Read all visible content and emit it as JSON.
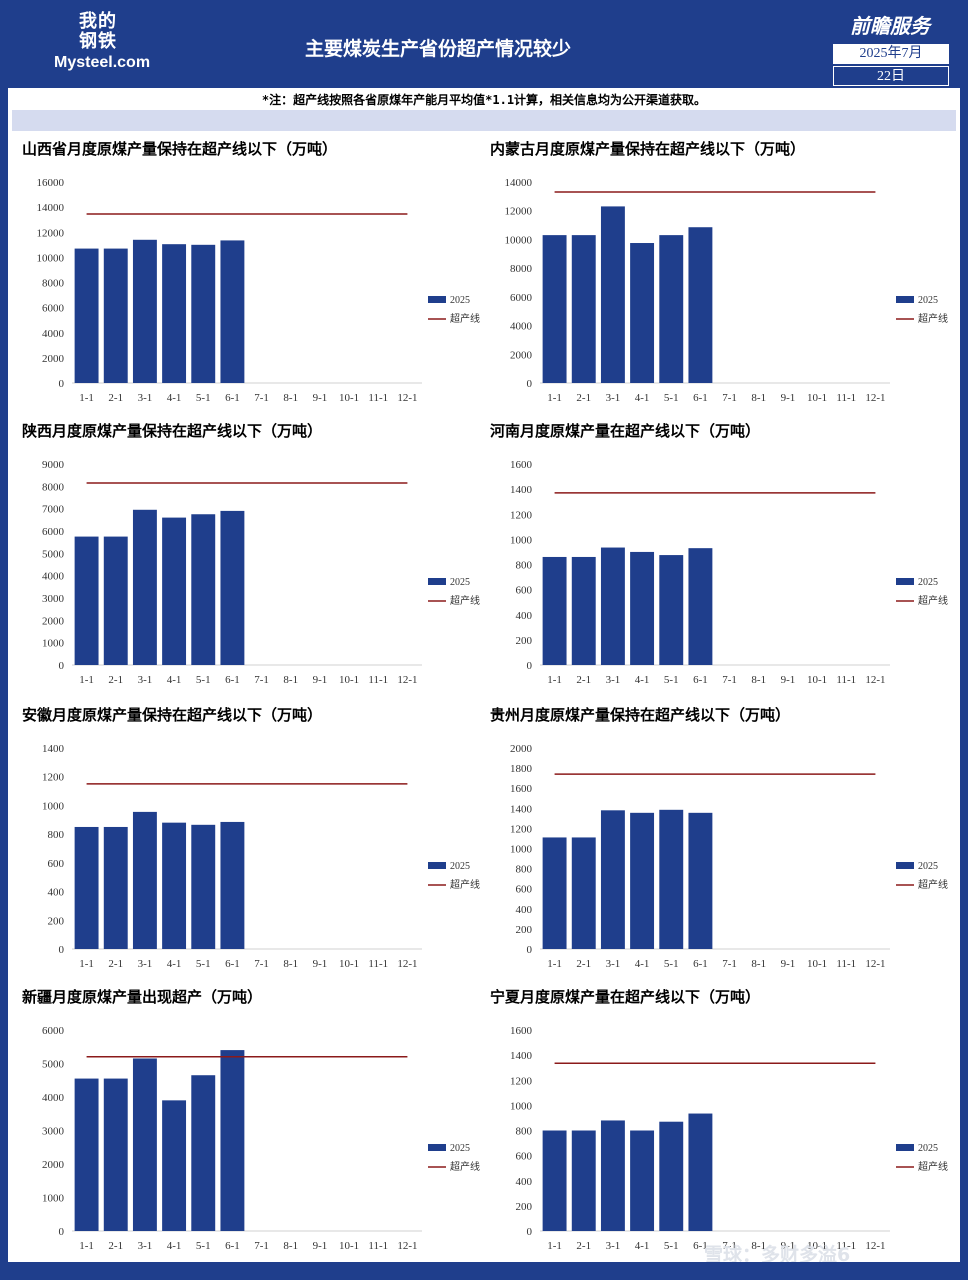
{
  "header": {
    "logo_cn": "我的钢铁",
    "logo_en": "Mysteel.com",
    "title": "主要煤炭生产省份超产情况较少",
    "brand": "前瞻服务",
    "date": "2025年7月",
    "day": "22日"
  },
  "note": "*注：超产线按照各省原煤年产能月平均值*1.1计算，相关信息均为公开渠道获取。",
  "watermark": "雪球：多财多溢6",
  "colors": {
    "bar": "#1f3e8c",
    "line": "#8b1a1a",
    "frame": "#1f3e8c"
  },
  "chart_data": [
    {
      "type": "bar",
      "title": "山西省月度原煤产量保持在超产线以下（万吨）",
      "categories": [
        "1-1",
        "2-1",
        "3-1",
        "4-1",
        "5-1",
        "6-1",
        "7-1",
        "8-1",
        "9-1",
        "10-1",
        "11-1",
        "12-1"
      ],
      "series": [
        {
          "name": "2025",
          "type": "bar",
          "values": [
            10700,
            10700,
            11400,
            11050,
            11000,
            11350,
            null,
            null,
            null,
            null,
            null,
            null
          ]
        },
        {
          "name": "超产线",
          "type": "line",
          "values": [
            13450,
            13450,
            13450,
            13450,
            13450,
            13450,
            13450,
            13450,
            13450,
            13450,
            13450,
            13450
          ]
        }
      ],
      "yticks": [
        0,
        2000,
        4000,
        6000,
        8000,
        10000,
        12000,
        14000,
        16000
      ],
      "ylim": [
        0,
        16000
      ],
      "legend": "right"
    },
    {
      "type": "bar",
      "title": "内蒙古月度原煤产量保持在超产线以下（万吨）",
      "categories": [
        "1-1",
        "2-1",
        "3-1",
        "4-1",
        "5-1",
        "6-1",
        "7-1",
        "8-1",
        "9-1",
        "10-1",
        "11-1",
        "12-1"
      ],
      "series": [
        {
          "name": "2025",
          "type": "bar",
          "values": [
            10300,
            10300,
            12300,
            9750,
            10300,
            10850,
            null,
            null,
            null,
            null,
            null,
            null
          ]
        },
        {
          "name": "超产线",
          "type": "line",
          "values": [
            13300,
            13300,
            13300,
            13300,
            13300,
            13300,
            13300,
            13300,
            13300,
            13300,
            13300,
            13300
          ]
        }
      ],
      "yticks": [
        0,
        2000,
        4000,
        6000,
        8000,
        10000,
        12000,
        14000
      ],
      "ylim": [
        0,
        14000
      ],
      "legend": "right"
    },
    {
      "type": "bar",
      "title": "陕西月度原煤产量保持在超产线以下（万吨）",
      "categories": [
        "1-1",
        "2-1",
        "3-1",
        "4-1",
        "5-1",
        "6-1",
        "7-1",
        "8-1",
        "9-1",
        "10-1",
        "11-1",
        "12-1"
      ],
      "series": [
        {
          "name": "2025",
          "type": "bar",
          "values": [
            5750,
            5750,
            6950,
            6600,
            6750,
            6900,
            null,
            null,
            null,
            null,
            null,
            null
          ]
        },
        {
          "name": "超产线",
          "type": "line",
          "values": [
            8150,
            8150,
            8150,
            8150,
            8150,
            8150,
            8150,
            8150,
            8150,
            8150,
            8150,
            8150
          ]
        }
      ],
      "yticks": [
        0,
        1000,
        2000,
        3000,
        4000,
        5000,
        6000,
        7000,
        8000,
        9000
      ],
      "ylim": [
        0,
        9000
      ],
      "legend": "right"
    },
    {
      "type": "bar",
      "title": "河南月度原煤产量在超产线以下（万吨）",
      "categories": [
        "1-1",
        "2-1",
        "3-1",
        "4-1",
        "5-1",
        "6-1",
        "7-1",
        "8-1",
        "9-1",
        "10-1",
        "11-1",
        "12-1"
      ],
      "series": [
        {
          "name": "2025",
          "type": "bar",
          "values": [
            860,
            860,
            935,
            900,
            875,
            930,
            null,
            null,
            null,
            null,
            null,
            null
          ]
        },
        {
          "name": "超产线",
          "type": "line",
          "values": [
            1370,
            1370,
            1370,
            1370,
            1370,
            1370,
            1370,
            1370,
            1370,
            1370,
            1370,
            1370
          ]
        }
      ],
      "yticks": [
        0,
        200,
        400,
        600,
        800,
        1000,
        1200,
        1400,
        1600
      ],
      "ylim": [
        0,
        1600
      ],
      "legend": "right"
    },
    {
      "type": "bar",
      "title": "安徽月度原煤产量保持在超产线以下（万吨）",
      "categories": [
        "1-1",
        "2-1",
        "3-1",
        "4-1",
        "5-1",
        "6-1",
        "7-1",
        "8-1",
        "9-1",
        "10-1",
        "11-1",
        "12-1"
      ],
      "series": [
        {
          "name": "2025",
          "type": "bar",
          "values": [
            850,
            850,
            955,
            880,
            865,
            885,
            null,
            null,
            null,
            null,
            null,
            null
          ]
        },
        {
          "name": "超产线",
          "type": "line",
          "values": [
            1150,
            1150,
            1150,
            1150,
            1150,
            1150,
            1150,
            1150,
            1150,
            1150,
            1150,
            1150
          ]
        }
      ],
      "yticks": [
        0,
        200,
        400,
        600,
        800,
        1000,
        1200,
        1400
      ],
      "ylim": [
        0,
        1400
      ],
      "legend": "right"
    },
    {
      "type": "bar",
      "title": "贵州月度原煤产量保持在超产线以下（万吨）",
      "categories": [
        "1-1",
        "2-1",
        "3-1",
        "4-1",
        "5-1",
        "6-1",
        "7-1",
        "8-1",
        "9-1",
        "10-1",
        "11-1",
        "12-1"
      ],
      "series": [
        {
          "name": "2025",
          "type": "bar",
          "values": [
            1110,
            1110,
            1380,
            1355,
            1385,
            1355,
            null,
            null,
            null,
            null,
            null,
            null
          ]
        },
        {
          "name": "超产线",
          "type": "line",
          "values": [
            1740,
            1740,
            1740,
            1740,
            1740,
            1740,
            1740,
            1740,
            1740,
            1740,
            1740,
            1740
          ]
        }
      ],
      "yticks": [
        0,
        200,
        400,
        600,
        800,
        1000,
        1200,
        1400,
        1600,
        1800,
        2000
      ],
      "ylim": [
        0,
        2000
      ],
      "legend": "right"
    },
    {
      "type": "bar",
      "title": "新疆月度原煤产量出现超产（万吨）",
      "categories": [
        "1-1",
        "2-1",
        "3-1",
        "4-1",
        "5-1",
        "6-1",
        "7-1",
        "8-1",
        "9-1",
        "10-1",
        "11-1",
        "12-1"
      ],
      "series": [
        {
          "name": "2025",
          "type": "bar",
          "values": [
            4550,
            4550,
            5150,
            3900,
            4650,
            5400,
            null,
            null,
            null,
            null,
            null,
            null
          ]
        },
        {
          "name": "超产线",
          "type": "line",
          "values": [
            5200,
            5200,
            5200,
            5200,
            5200,
            5200,
            5200,
            5200,
            5200,
            5200,
            5200,
            5200
          ]
        }
      ],
      "yticks": [
        0,
        1000,
        2000,
        3000,
        4000,
        5000,
        6000
      ],
      "ylim": [
        0,
        6000
      ],
      "legend": "right"
    },
    {
      "type": "bar",
      "title": "宁夏月度原煤产量在超产线以下（万吨）",
      "categories": [
        "1-1",
        "2-1",
        "3-1",
        "4-1",
        "5-1",
        "6-1",
        "7-1",
        "8-1",
        "9-1",
        "10-1",
        "11-1",
        "12-1"
      ],
      "series": [
        {
          "name": "2025",
          "type": "bar",
          "values": [
            800,
            800,
            880,
            800,
            870,
            935,
            null,
            null,
            null,
            null,
            null,
            null
          ]
        },
        {
          "name": "超产线",
          "type": "line",
          "values": [
            1335,
            1335,
            1335,
            1335,
            1335,
            1335,
            1335,
            1335,
            1335,
            1335,
            1335,
            1335
          ]
        }
      ],
      "yticks": [
        0,
        200,
        400,
        600,
        800,
        1000,
        1200,
        1400,
        1600
      ],
      "ylim": [
        0,
        1600
      ],
      "legend": "right"
    }
  ]
}
